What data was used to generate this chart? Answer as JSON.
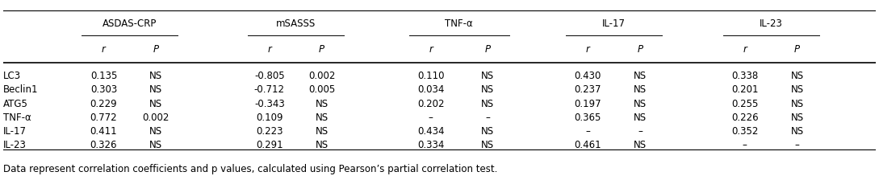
{
  "title": "",
  "footnote": "Data represent correlation coefficients and p values, calculated using Pearson’s partial correlation test.",
  "col_groups": [
    "ASDAS-CRP",
    "mSASSS",
    "TNF-α",
    "IL-17",
    "IL-23"
  ],
  "sub_cols": [
    "r",
    "P"
  ],
  "row_labels": [
    "LC3",
    "Beclin1",
    "ATG5",
    "TNF-α",
    "IL-17",
    "IL-23"
  ],
  "data": [
    [
      "0.135",
      "NS",
      "-0.805",
      "0.002",
      "0.110",
      "NS",
      "0.430",
      "NS",
      "0.338",
      "NS"
    ],
    [
      "0.303",
      "NS",
      "-0.712",
      "0.005",
      "0.034",
      "NS",
      "0.237",
      "NS",
      "0.201",
      "NS"
    ],
    [
      "0.229",
      "NS",
      "-0.343",
      "NS",
      "0.202",
      "NS",
      "0.197",
      "NS",
      "0.255",
      "NS"
    ],
    [
      "0.772",
      "0.002",
      "0.109",
      "NS",
      "–",
      "–",
      "0.365",
      "NS",
      "0.226",
      "NS"
    ],
    [
      "0.411",
      "NS",
      "0.223",
      "NS",
      "0.434",
      "NS",
      "–",
      "–",
      "0.352",
      "NS"
    ],
    [
      "0.326",
      "NS",
      "0.291",
      "NS",
      "0.334",
      "NS",
      "0.461",
      "NS",
      "–",
      "–"
    ]
  ],
  "bg_color": "#ffffff",
  "text_color": "#000000",
  "line_color": "#000000",
  "font_size": 8.5,
  "header_font_size": 8.5,
  "footnote_font_size": 8.5
}
